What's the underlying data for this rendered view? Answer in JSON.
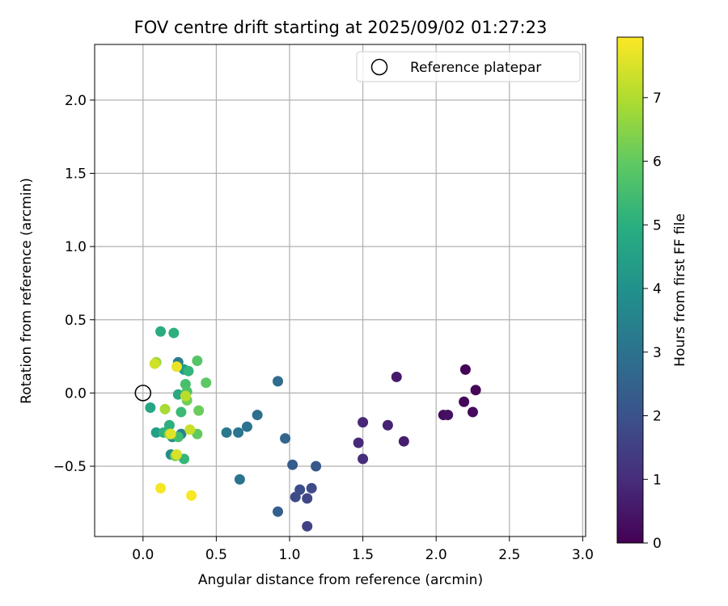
{
  "chart_data": {
    "type": "scatter",
    "title": "FOV centre drift starting at 2025/09/02 01:27:23",
    "xlabel": "Angular distance from reference (arcmin)",
    "ylabel": "Rotation from reference (arcmin)",
    "xlim": [
      -0.33,
      3.02
    ],
    "ylim": [
      -0.98,
      2.38
    ],
    "xticks": [
      "0.0",
      "0.5",
      "1.0",
      "1.5",
      "2.0",
      "2.5",
      "3.0"
    ],
    "yticks": [
      "−0.5",
      "0.0",
      "0.5",
      "1.0",
      "1.5",
      "2.0"
    ],
    "grid": true,
    "legend": {
      "placement": "top-right",
      "entries": [
        "Reference platepar"
      ]
    },
    "reference_point": {
      "x": 0.0,
      "y": 0.0
    },
    "colorbar": {
      "label": "Hours from first FF file",
      "range": [
        0,
        7.95
      ],
      "ticks": [
        "0",
        "1",
        "2",
        "3",
        "4",
        "5",
        "6",
        "7"
      ],
      "colormap": "viridis"
    },
    "points": [
      {
        "x": 2.2,
        "y": 0.16,
        "h": 0.05
      },
      {
        "x": 2.27,
        "y": 0.02,
        "h": 0.12
      },
      {
        "x": 2.19,
        "y": -0.06,
        "h": 0.18
      },
      {
        "x": 2.25,
        "y": -0.13,
        "h": 0.22
      },
      {
        "x": 2.05,
        "y": -0.15,
        "h": 0.28
      },
      {
        "x": 2.08,
        "y": -0.15,
        "h": 0.33
      },
      {
        "x": 1.73,
        "y": 0.11,
        "h": 0.55
      },
      {
        "x": 1.78,
        "y": -0.33,
        "h": 0.65
      },
      {
        "x": 1.67,
        "y": -0.22,
        "h": 0.75
      },
      {
        "x": 1.5,
        "y": -0.2,
        "h": 0.85
      },
      {
        "x": 1.47,
        "y": -0.34,
        "h": 0.95
      },
      {
        "x": 1.5,
        "y": -0.45,
        "h": 1.05
      },
      {
        "x": 1.12,
        "y": -0.91,
        "h": 1.55
      },
      {
        "x": 1.12,
        "y": -0.72,
        "h": 1.7
      },
      {
        "x": 1.15,
        "y": -0.65,
        "h": 1.8
      },
      {
        "x": 1.04,
        "y": -0.71,
        "h": 1.85
      },
      {
        "x": 1.07,
        "y": -0.66,
        "h": 1.9
      },
      {
        "x": 1.18,
        "y": -0.5,
        "h": 2.2
      },
      {
        "x": 1.02,
        "y": -0.49,
        "h": 2.3
      },
      {
        "x": 0.92,
        "y": -0.81,
        "h": 2.4
      },
      {
        "x": 0.97,
        "y": -0.31,
        "h": 2.6
      },
      {
        "x": 0.92,
        "y": 0.08,
        "h": 2.8
      },
      {
        "x": 0.78,
        "y": -0.15,
        "h": 2.9
      },
      {
        "x": 0.71,
        "y": -0.23,
        "h": 3.0
      },
      {
        "x": 0.65,
        "y": -0.27,
        "h": 3.1
      },
      {
        "x": 0.57,
        "y": -0.27,
        "h": 3.2
      },
      {
        "x": 0.66,
        "y": -0.59,
        "h": 3.05
      },
      {
        "x": 0.24,
        "y": 0.21,
        "h": 3.4
      },
      {
        "x": 0.26,
        "y": -0.28,
        "h": 3.6
      },
      {
        "x": 0.19,
        "y": -0.42,
        "h": 3.9
      },
      {
        "x": 0.2,
        "y": -0.3,
        "h": 4.1
      },
      {
        "x": 0.28,
        "y": 0.16,
        "h": 4.3
      },
      {
        "x": 0.09,
        "y": -0.27,
        "h": 4.5
      },
      {
        "x": 0.05,
        "y": -0.1,
        "h": 4.7
      },
      {
        "x": 0.24,
        "y": -0.01,
        "h": 4.8
      },
      {
        "x": 0.12,
        "y": 0.42,
        "h": 4.9
      },
      {
        "x": 0.21,
        "y": 0.41,
        "h": 5.0
      },
      {
        "x": 0.18,
        "y": -0.22,
        "h": 5.0
      },
      {
        "x": 0.14,
        "y": -0.27,
        "h": 5.1
      },
      {
        "x": 0.31,
        "y": 0.15,
        "h": 5.2
      },
      {
        "x": 0.28,
        "y": -0.45,
        "h": 5.3
      },
      {
        "x": 0.26,
        "y": -0.13,
        "h": 5.4
      },
      {
        "x": 0.24,
        "y": -0.3,
        "h": 5.5
      },
      {
        "x": 0.29,
        "y": 0.06,
        "h": 5.6
      },
      {
        "x": 0.3,
        "y": 0.01,
        "h": 5.7
      },
      {
        "x": 0.37,
        "y": 0.22,
        "h": 5.8
      },
      {
        "x": 0.43,
        "y": 0.07,
        "h": 5.9
      },
      {
        "x": 0.37,
        "y": -0.28,
        "h": 6.0
      },
      {
        "x": 0.38,
        "y": -0.12,
        "h": 6.1
      },
      {
        "x": 0.3,
        "y": -0.05,
        "h": 6.2
      },
      {
        "x": 0.22,
        "y": -0.43,
        "h": 6.3
      },
      {
        "x": 0.18,
        "y": -0.28,
        "h": 6.5
      },
      {
        "x": 0.09,
        "y": 0.21,
        "h": 6.7
      },
      {
        "x": 0.15,
        "y": -0.11,
        "h": 6.9
      },
      {
        "x": 0.29,
        "y": -0.02,
        "h": 7.1
      },
      {
        "x": 0.32,
        "y": -0.25,
        "h": 7.3
      },
      {
        "x": 0.08,
        "y": 0.2,
        "h": 7.4
      },
      {
        "x": 0.23,
        "y": -0.42,
        "h": 7.5
      },
      {
        "x": 0.19,
        "y": -0.28,
        "h": 7.6
      },
      {
        "x": 0.23,
        "y": 0.18,
        "h": 7.7
      },
      {
        "x": 0.12,
        "y": -0.65,
        "h": 7.85
      },
      {
        "x": 0.33,
        "y": -0.7,
        "h": 7.9
      }
    ]
  }
}
